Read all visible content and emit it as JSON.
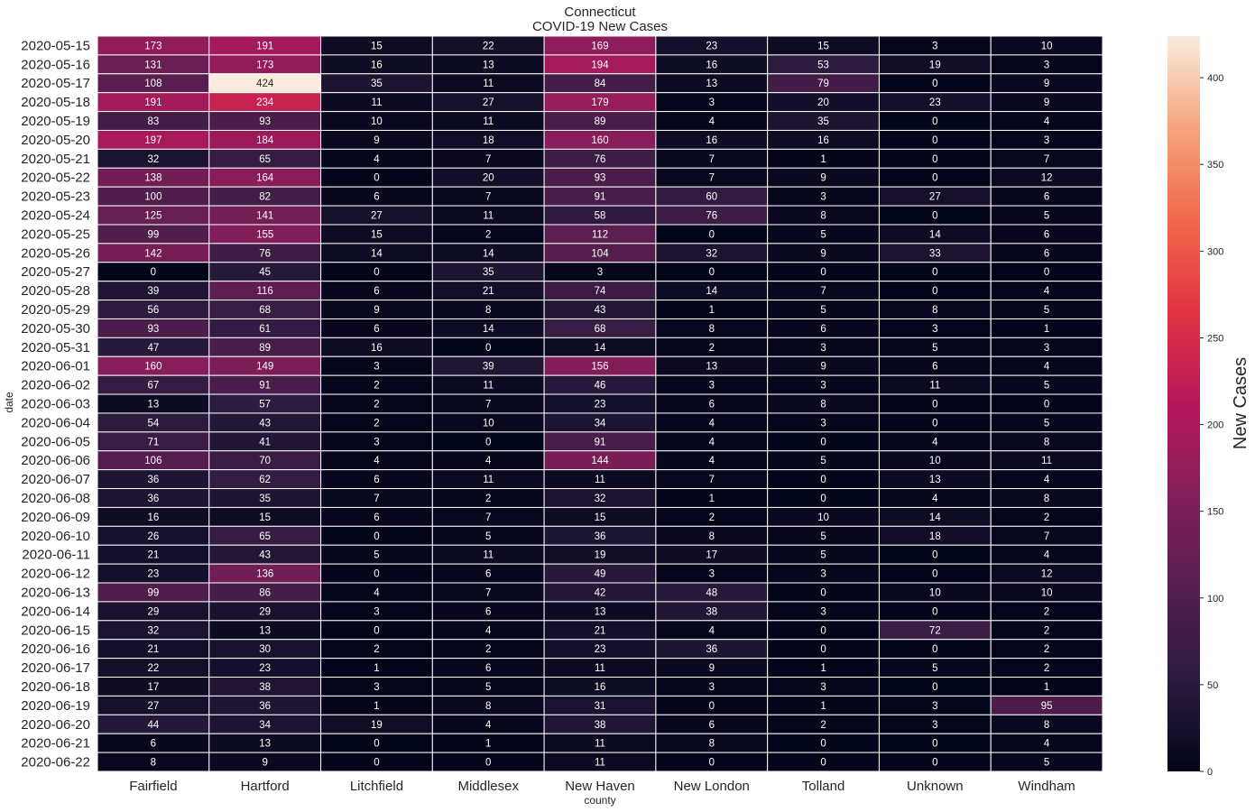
{
  "chart_data": {
    "type": "heatmap",
    "title": "Connecticut",
    "subtitle": "COVID-19 New Cases",
    "xlabel": "county",
    "ylabel": "date",
    "colorbar_label": "New Cases",
    "colormap": "rocket",
    "color_range": [
      0,
      424
    ],
    "colorbar_ticks": [
      0,
      50,
      100,
      150,
      200,
      250,
      300,
      350,
      400
    ],
    "columns": [
      "Fairfield",
      "Hartford",
      "Litchfield",
      "Middlesex",
      "New Haven",
      "New London",
      "Tolland",
      "Unknown",
      "Windham"
    ],
    "rows": [
      "2020-05-15",
      "2020-05-16",
      "2020-05-17",
      "2020-05-18",
      "2020-05-19",
      "2020-05-20",
      "2020-05-21",
      "2020-05-22",
      "2020-05-23",
      "2020-05-24",
      "2020-05-25",
      "2020-05-26",
      "2020-05-27",
      "2020-05-28",
      "2020-05-29",
      "2020-05-30",
      "2020-05-31",
      "2020-06-01",
      "2020-06-02",
      "2020-06-03",
      "2020-06-04",
      "2020-06-05",
      "2020-06-06",
      "2020-06-07",
      "2020-06-08",
      "2020-06-09",
      "2020-06-10",
      "2020-06-11",
      "2020-06-12",
      "2020-06-13",
      "2020-06-14",
      "2020-06-15",
      "2020-06-16",
      "2020-06-17",
      "2020-06-18",
      "2020-06-19",
      "2020-06-20",
      "2020-06-21",
      "2020-06-22"
    ],
    "values": [
      [
        173,
        191,
        15,
        22,
        169,
        23,
        15,
        3,
        10
      ],
      [
        131,
        173,
        16,
        13,
        194,
        16,
        53,
        19,
        3
      ],
      [
        108,
        424,
        35,
        11,
        84,
        13,
        79,
        0,
        9
      ],
      [
        191,
        234,
        11,
        27,
        179,
        3,
        20,
        23,
        9
      ],
      [
        83,
        93,
        10,
        11,
        89,
        4,
        35,
        0,
        4
      ],
      [
        197,
        184,
        9,
        18,
        160,
        16,
        16,
        0,
        3
      ],
      [
        32,
        65,
        4,
        7,
        76,
        7,
        1,
        0,
        7
      ],
      [
        138,
        164,
        0,
        20,
        93,
        7,
        9,
        0,
        12
      ],
      [
        100,
        82,
        6,
        7,
        91,
        60,
        3,
        27,
        6
      ],
      [
        125,
        141,
        27,
        11,
        58,
        76,
        8,
        0,
        5
      ],
      [
        99,
        155,
        15,
        2,
        112,
        0,
        5,
        14,
        6
      ],
      [
        142,
        76,
        14,
        14,
        104,
        32,
        9,
        33,
        6
      ],
      [
        0,
        45,
        0,
        35,
        3,
        0,
        0,
        0,
        0
      ],
      [
        39,
        116,
        6,
        21,
        74,
        14,
        7,
        0,
        4
      ],
      [
        56,
        68,
        9,
        8,
        43,
        1,
        5,
        8,
        5
      ],
      [
        93,
        61,
        6,
        14,
        68,
        8,
        6,
        3,
        1
      ],
      [
        47,
        89,
        16,
        0,
        14,
        2,
        3,
        5,
        3
      ],
      [
        160,
        149,
        3,
        39,
        156,
        13,
        9,
        6,
        4
      ],
      [
        67,
        91,
        2,
        11,
        46,
        3,
        3,
        11,
        5
      ],
      [
        13,
        57,
        2,
        7,
        23,
        6,
        8,
        0,
        0
      ],
      [
        54,
        43,
        2,
        10,
        34,
        4,
        3,
        0,
        5
      ],
      [
        71,
        41,
        3,
        0,
        91,
        4,
        0,
        4,
        8
      ],
      [
        106,
        70,
        4,
        4,
        144,
        4,
        5,
        10,
        11
      ],
      [
        36,
        62,
        6,
        11,
        11,
        7,
        0,
        13,
        4
      ],
      [
        36,
        35,
        7,
        2,
        32,
        1,
        0,
        4,
        8
      ],
      [
        16,
        15,
        6,
        7,
        15,
        2,
        10,
        14,
        2
      ],
      [
        26,
        65,
        0,
        5,
        36,
        8,
        5,
        18,
        7
      ],
      [
        21,
        43,
        5,
        11,
        19,
        17,
        5,
        0,
        4
      ],
      [
        23,
        136,
        0,
        6,
        49,
        3,
        3,
        0,
        12
      ],
      [
        99,
        86,
        4,
        7,
        42,
        48,
        0,
        10,
        10
      ],
      [
        29,
        29,
        3,
        6,
        13,
        38,
        3,
        0,
        2
      ],
      [
        32,
        13,
        0,
        4,
        21,
        4,
        0,
        72,
        2
      ],
      [
        21,
        30,
        2,
        2,
        23,
        36,
        0,
        0,
        2
      ],
      [
        22,
        23,
        1,
        6,
        11,
        9,
        1,
        5,
        2
      ],
      [
        17,
        38,
        3,
        5,
        16,
        3,
        3,
        0,
        1
      ],
      [
        27,
        36,
        1,
        8,
        31,
        0,
        1,
        3,
        95
      ],
      [
        44,
        34,
        19,
        4,
        38,
        6,
        2,
        3,
        8
      ],
      [
        6,
        13,
        0,
        1,
        11,
        8,
        0,
        0,
        4
      ],
      [
        8,
        9,
        0,
        0,
        11,
        0,
        0,
        0,
        5
      ]
    ]
  }
}
